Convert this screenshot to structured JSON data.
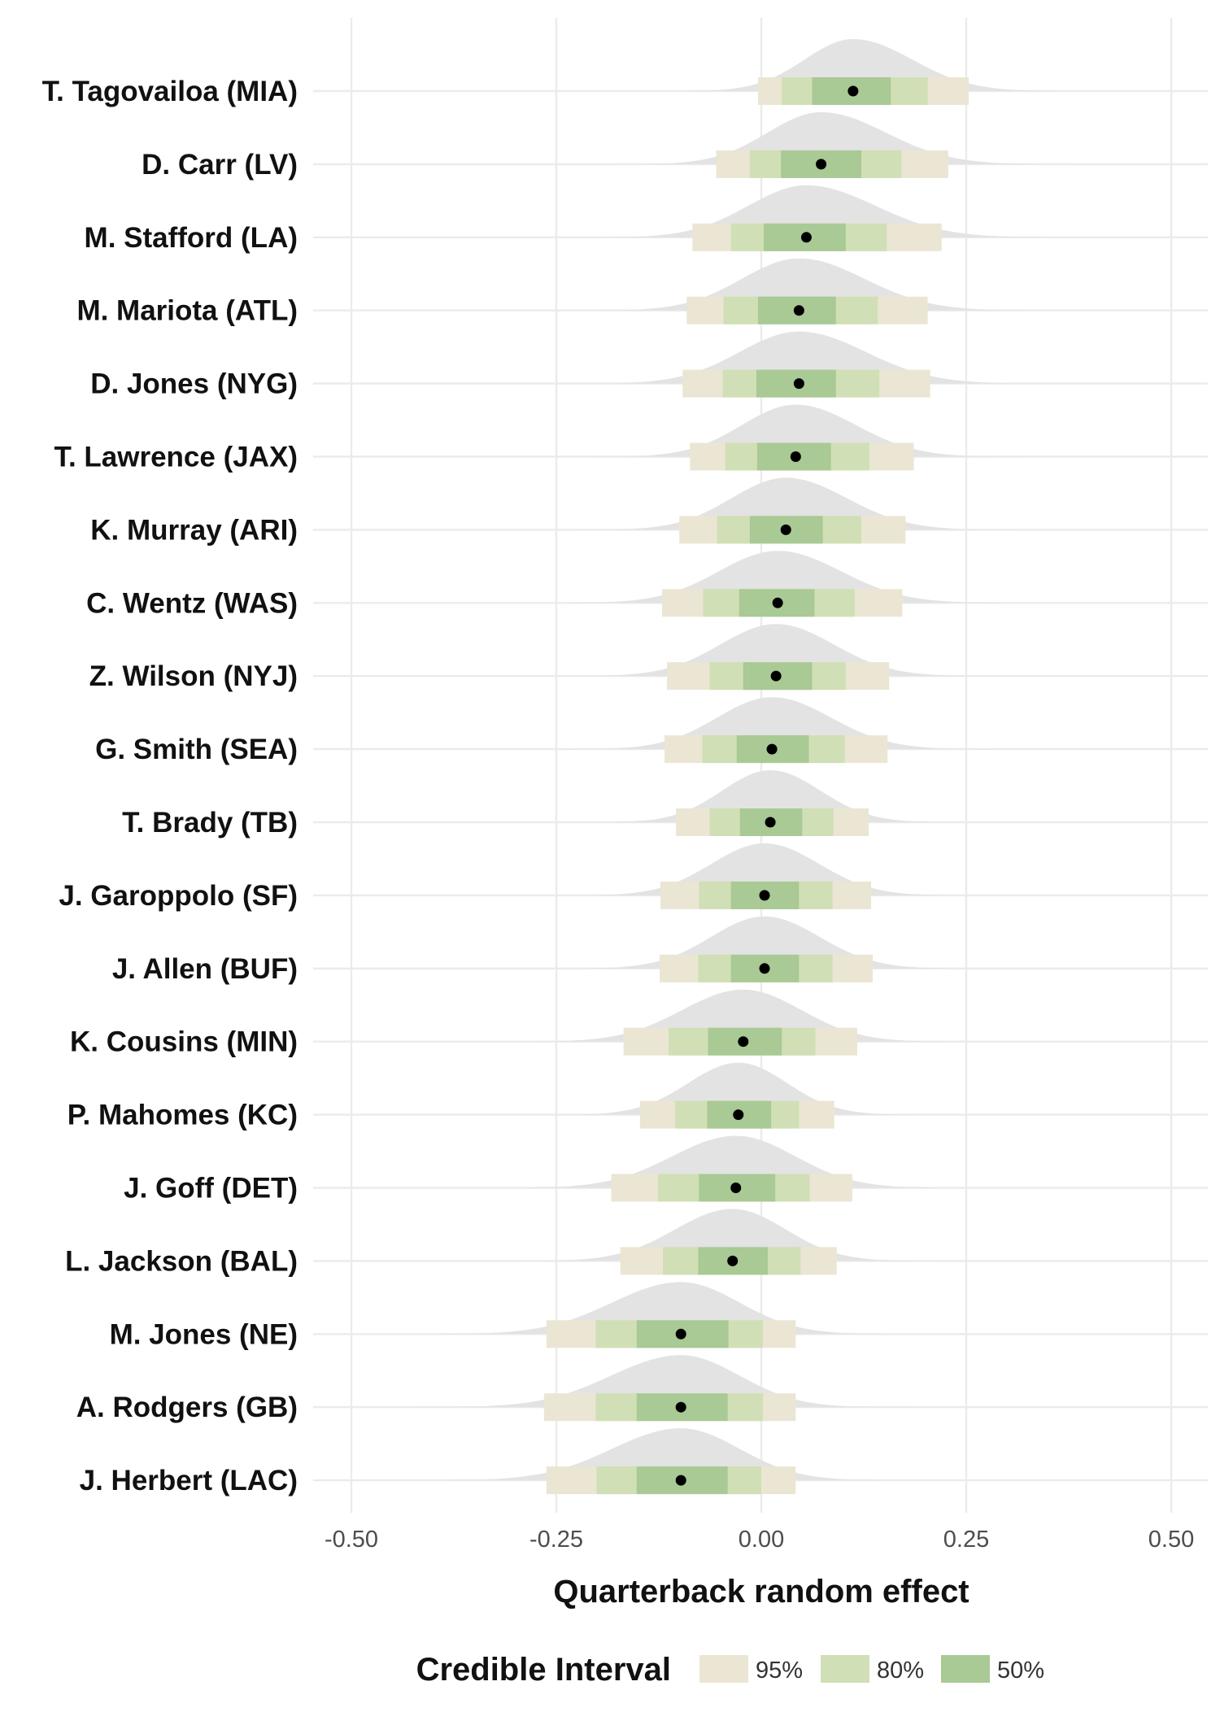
{
  "chart_data": {
    "type": "halfeye",
    "xlabel": "Quarterback random effect",
    "xlim": [
      -0.55,
      0.55
    ],
    "x_ticks": [
      -0.5,
      -0.25,
      0.0,
      0.25,
      0.5
    ],
    "x_tick_labels": [
      "-0.50",
      "-0.25",
      "0.00",
      "0.25",
      "0.50"
    ],
    "grid": true,
    "legend_position": "bottom",
    "legend": {
      "title": "Credible Interval",
      "entries": [
        {
          "label": "95%",
          "color": "#ebe6d3"
        },
        {
          "label": "80%",
          "color": "#d0dfb5"
        },
        {
          "label": "50%",
          "color": "#a9c995"
        }
      ]
    },
    "colors": {
      "density": "#e3e3e3",
      "point": "#000000",
      "grid": "#ebebeb"
    },
    "quarterbacks": [
      {
        "name": "T. Tagovailoa (MIA)",
        "median": 0.112,
        "ci50": [
          0.062,
          0.158
        ],
        "ci80": [
          0.025,
          0.203
        ],
        "ci95": [
          -0.004,
          0.253
        ]
      },
      {
        "name": "D. Carr (LV)",
        "median": 0.073,
        "ci50": [
          0.024,
          0.122
        ],
        "ci80": [
          -0.014,
          0.171
        ],
        "ci95": [
          -0.055,
          0.228
        ]
      },
      {
        "name": "M. Stafford (LA)",
        "median": 0.055,
        "ci50": [
          0.003,
          0.103
        ],
        "ci80": [
          -0.037,
          0.153
        ],
        "ci95": [
          -0.084,
          0.22
        ]
      },
      {
        "name": "M. Mariota (ATL)",
        "median": 0.046,
        "ci50": [
          -0.004,
          0.091
        ],
        "ci80": [
          -0.046,
          0.142
        ],
        "ci95": [
          -0.091,
          0.203
        ]
      },
      {
        "name": "D. Jones (NYG)",
        "median": 0.046,
        "ci50": [
          -0.006,
          0.091
        ],
        "ci80": [
          -0.047,
          0.144
        ],
        "ci95": [
          -0.096,
          0.206
        ]
      },
      {
        "name": "T. Lawrence (JAX)",
        "median": 0.042,
        "ci50": [
          -0.005,
          0.085
        ],
        "ci80": [
          -0.044,
          0.132
        ],
        "ci95": [
          -0.087,
          0.186
        ]
      },
      {
        "name": "K. Murray (ARI)",
        "median": 0.03,
        "ci50": [
          -0.014,
          0.075
        ],
        "ci80": [
          -0.054,
          0.122
        ],
        "ci95": [
          -0.1,
          0.176
        ]
      },
      {
        "name": "C. Wentz (WAS)",
        "median": 0.02,
        "ci50": [
          -0.027,
          0.065
        ],
        "ci80": [
          -0.071,
          0.114
        ],
        "ci95": [
          -0.121,
          0.172
        ]
      },
      {
        "name": "Z. Wilson (NYJ)",
        "median": 0.018,
        "ci50": [
          -0.022,
          0.062
        ],
        "ci80": [
          -0.063,
          0.103
        ],
        "ci95": [
          -0.115,
          0.156
        ]
      },
      {
        "name": "G. Smith (SEA)",
        "median": 0.013,
        "ci50": [
          -0.03,
          0.058
        ],
        "ci80": [
          -0.072,
          0.102
        ],
        "ci95": [
          -0.118,
          0.154
        ]
      },
      {
        "name": "T. Brady (TB)",
        "median": 0.011,
        "ci50": [
          -0.026,
          0.05
        ],
        "ci80": [
          -0.063,
          0.088
        ],
        "ci95": [
          -0.104,
          0.131
        ]
      },
      {
        "name": "J. Garoppolo (SF)",
        "median": 0.004,
        "ci50": [
          -0.037,
          0.046
        ],
        "ci80": [
          -0.076,
          0.087
        ],
        "ci95": [
          -0.123,
          0.134
        ]
      },
      {
        "name": "J. Allen (BUF)",
        "median": 0.004,
        "ci50": [
          -0.037,
          0.046
        ],
        "ci80": [
          -0.077,
          0.087
        ],
        "ci95": [
          -0.124,
          0.136
        ]
      },
      {
        "name": "K. Cousins (MIN)",
        "median": -0.022,
        "ci50": [
          -0.065,
          0.025
        ],
        "ci80": [
          -0.113,
          0.066
        ],
        "ci95": [
          -0.168,
          0.117
        ]
      },
      {
        "name": "P. Mahomes (KC)",
        "median": -0.028,
        "ci50": [
          -0.066,
          0.012
        ],
        "ci80": [
          -0.105,
          0.046
        ],
        "ci95": [
          -0.148,
          0.089
        ]
      },
      {
        "name": "J. Goff (DET)",
        "median": -0.031,
        "ci50": [
          -0.076,
          0.017
        ],
        "ci80": [
          -0.126,
          0.059
        ],
        "ci95": [
          -0.183,
          0.111
        ]
      },
      {
        "name": "L. Jackson (BAL)",
        "median": -0.035,
        "ci50": [
          -0.077,
          0.008
        ],
        "ci80": [
          -0.12,
          0.048
        ],
        "ci95": [
          -0.172,
          0.092
        ]
      },
      {
        "name": "M. Jones (NE)",
        "median": -0.098,
        "ci50": [
          -0.152,
          -0.04
        ],
        "ci80": [
          -0.202,
          0.002
        ],
        "ci95": [
          -0.262,
          0.042
        ]
      },
      {
        "name": "A. Rodgers (GB)",
        "median": -0.098,
        "ci50": [
          -0.152,
          -0.041
        ],
        "ci80": [
          -0.202,
          0.002
        ],
        "ci95": [
          -0.265,
          0.042
        ]
      },
      {
        "name": "J. Herbert (LAC)",
        "median": -0.098,
        "ci50": [
          -0.152,
          -0.041
        ],
        "ci80": [
          -0.201,
          0.0
        ],
        "ci95": [
          -0.262,
          0.042
        ]
      }
    ]
  }
}
